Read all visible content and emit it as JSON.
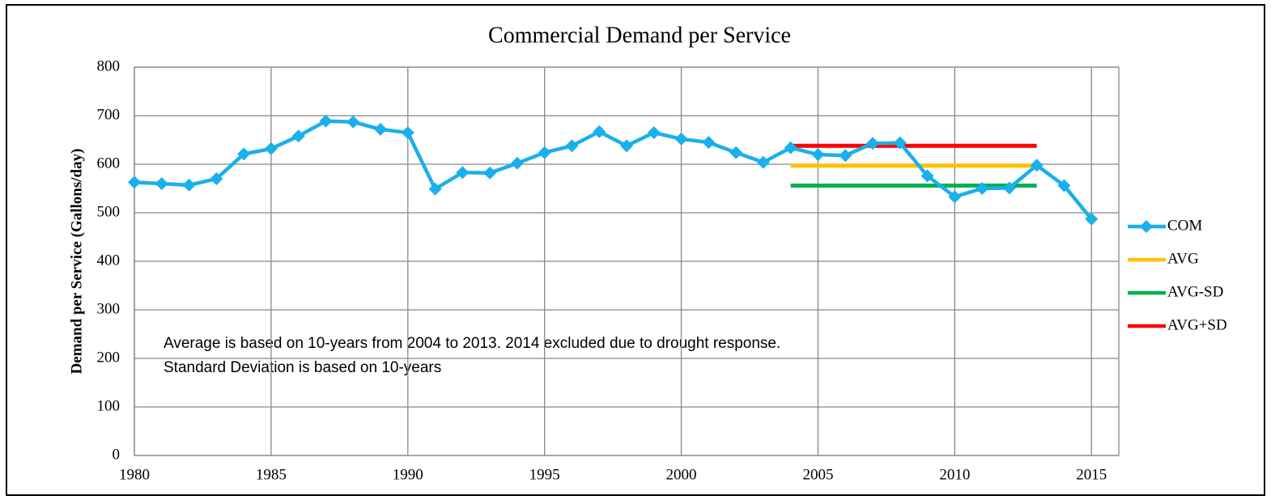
{
  "chart_data": {
    "type": "line",
    "title": "Commercial Demand per Service",
    "y_label": "Demand per Service (Gallons/day)",
    "annotations": [
      "Average is based on 10-years from 2004 to 2013. 2014 excluded due to drought response.",
      "Standard Deviation is based on 10-years"
    ],
    "xlim": [
      1980,
      2016
    ],
    "xticks": [
      1980,
      1985,
      1990,
      1995,
      2000,
      2005,
      2010,
      2015
    ],
    "ylim": [
      0,
      800
    ],
    "yticks": [
      0,
      100,
      200,
      300,
      400,
      500,
      600,
      700,
      800
    ],
    "grid": true,
    "legend": "right",
    "series": [
      {
        "name": "COM",
        "color": "#1ab0ea",
        "marker": "diamond",
        "x": [
          1980,
          1981,
          1982,
          1983,
          1984,
          1985,
          1986,
          1987,
          1988,
          1989,
          1990,
          1991,
          1992,
          1993,
          1994,
          1995,
          1996,
          1997,
          1998,
          1999,
          2000,
          2001,
          2002,
          2003,
          2004,
          2005,
          2006,
          2007,
          2008,
          2009,
          2010,
          2011,
          2012,
          2013,
          2014,
          2015
        ],
        "values": [
          563,
          560,
          557,
          570,
          621,
          632,
          658,
          689,
          687,
          672,
          665,
          549,
          583,
          582,
          602,
          624,
          638,
          667,
          638,
          665,
          652,
          645,
          624,
          604,
          634,
          620,
          618,
          643,
          644,
          576,
          533,
          550,
          551,
          598,
          556,
          487
        ]
      },
      {
        "name": "AVG",
        "color": "#ffc000",
        "x": [
          2004,
          2013
        ],
        "values": [
          597,
          597
        ]
      },
      {
        "name": "AVG-SD",
        "color": "#00b050",
        "x": [
          2004,
          2013
        ],
        "values": [
          556,
          556
        ]
      },
      {
        "name": "AVG+SD",
        "color": "#ff0000",
        "x": [
          2004,
          2013
        ],
        "values": [
          638,
          638
        ]
      }
    ]
  }
}
